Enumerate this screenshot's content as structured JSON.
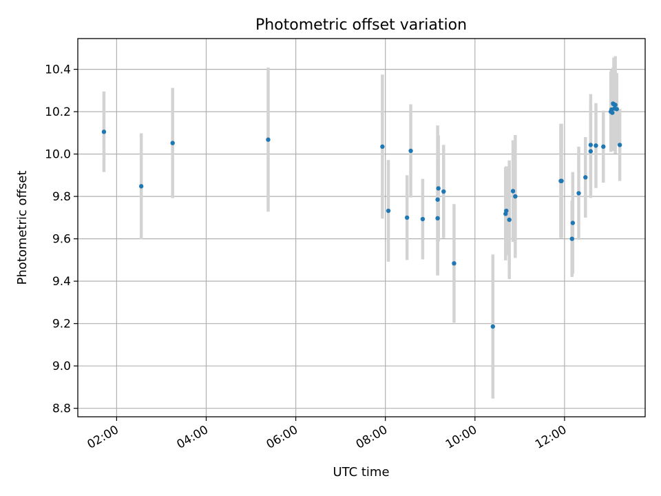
{
  "chart_data": {
    "type": "scatter",
    "title": "Photometric offset variation",
    "xlabel": "UTC time",
    "ylabel": "Photometric offset",
    "x_is_time": true,
    "xlim": [
      "01:08",
      "13:48"
    ],
    "ylim": [
      8.76,
      10.545
    ],
    "xticks": [
      "02:00",
      "04:00",
      "06:00",
      "08:00",
      "10:00",
      "12:00"
    ],
    "yticks": [
      8.8,
      9.0,
      9.2,
      9.4,
      9.6,
      9.8,
      10.0,
      10.2,
      10.4
    ],
    "grid": true,
    "colors": {
      "point": "#1f77b4",
      "errorbar": "#d3d3d3",
      "grid": "#b0b0b0"
    },
    "points": [
      {
        "x": "01:43",
        "y": 10.105,
        "err": 0.19
      },
      {
        "x": "02:33",
        "y": 9.848,
        "err": 0.25
      },
      {
        "x": "03:15",
        "y": 10.052,
        "err": 0.26
      },
      {
        "x": "05:23",
        "y": 10.068,
        "err": 0.34
      },
      {
        "x": "07:56",
        "y": 10.035,
        "err": 0.34
      },
      {
        "x": "08:04",
        "y": 9.732,
        "err": 0.24
      },
      {
        "x": "08:29",
        "y": 9.7,
        "err": 0.2
      },
      {
        "x": "08:34",
        "y": 10.015,
        "err": 0.22
      },
      {
        "x": "08:50",
        "y": 9.693,
        "err": 0.19
      },
      {
        "x": "09:10",
        "y": 9.697,
        "err": 0.27
      },
      {
        "x": "09:10",
        "y": 9.785,
        "err": 0.35
      },
      {
        "x": "09:11",
        "y": 9.838,
        "err": 0.25
      },
      {
        "x": "09:18",
        "y": 9.823,
        "err": 0.22
      },
      {
        "x": "09:32",
        "y": 9.484,
        "err": 0.28
      },
      {
        "x": "10:24",
        "y": 9.186,
        "err": 0.34
      },
      {
        "x": "10:41",
        "y": 9.718,
        "err": 0.22
      },
      {
        "x": "10:42",
        "y": 9.732,
        "err": 0.21
      },
      {
        "x": "10:46",
        "y": 9.69,
        "err": 0.28
      },
      {
        "x": "10:51",
        "y": 9.825,
        "err": 0.24
      },
      {
        "x": "10:54",
        "y": 9.8,
        "err": 0.29
      },
      {
        "x": "11:55",
        "y": 9.873,
        "err": 0.27
      },
      {
        "x": "11:56",
        "y": 9.873,
        "err": 0.27
      },
      {
        "x": "12:10",
        "y": 9.6,
        "err": 0.18
      },
      {
        "x": "12:11",
        "y": 9.675,
        "err": 0.24
      },
      {
        "x": "12:19",
        "y": 9.815,
        "err": 0.22
      },
      {
        "x": "12:28",
        "y": 9.89,
        "err": 0.19
      },
      {
        "x": "12:35",
        "y": 10.013,
        "err": 0.22
      },
      {
        "x": "12:35",
        "y": 10.043,
        "err": 0.24
      },
      {
        "x": "12:42",
        "y": 10.04,
        "err": 0.2
      },
      {
        "x": "12:52",
        "y": 10.035,
        "err": 0.17
      },
      {
        "x": "13:02",
        "y": 10.2,
        "err": 0.19
      },
      {
        "x": "13:03",
        "y": 10.21,
        "err": 0.19
      },
      {
        "x": "13:04",
        "y": 10.195,
        "err": 0.18
      },
      {
        "x": "13:05",
        "y": 10.238,
        "err": 0.17
      },
      {
        "x": "13:06",
        "y": 10.235,
        "err": 0.22
      },
      {
        "x": "13:07",
        "y": 10.215,
        "err": 0.2
      },
      {
        "x": "13:08",
        "y": 10.232,
        "err": 0.23
      },
      {
        "x": "13:10",
        "y": 10.212,
        "err": 0.17
      },
      {
        "x": "13:14",
        "y": 10.043,
        "err": 0.17
      }
    ]
  }
}
